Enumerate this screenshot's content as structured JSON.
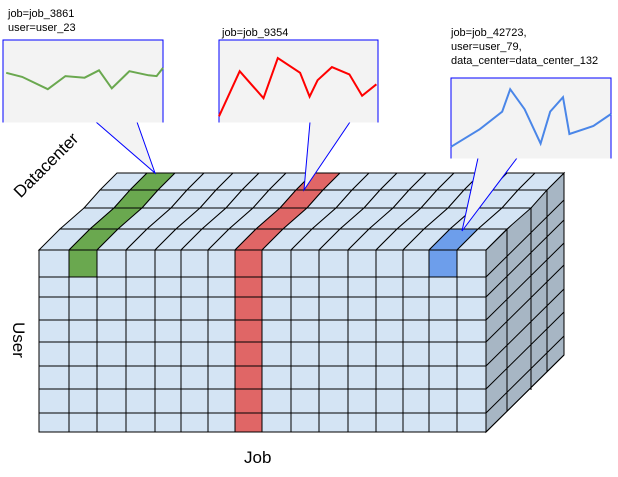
{
  "axes": {
    "datacenter": "Datacenter",
    "user": "User",
    "job": "Job"
  },
  "colors": {
    "cell": "#d4e4f4",
    "side": "#a7b6c4",
    "green": "#6aa84f",
    "red": "#e06666",
    "blue": "#6d9eeb",
    "callout_border": "#0000ff",
    "callout_fill": "#f3f3f3"
  },
  "callouts": [
    {
      "lines": [
        "job=job_3861",
        "user=user_23"
      ],
      "line_color": "#6aa84f"
    },
    {
      "lines": [
        "job=job_9354"
      ],
      "line_color": "#ff0000"
    },
    {
      "lines": [
        "job=job_42723,",
        "user=user_79,",
        "data_center=data_center_132"
      ],
      "line_color": "#4a86e8"
    }
  ],
  "chart_data": [
    {
      "type": "line",
      "series": [
        {
          "x": [
            2,
            12,
            28,
            39,
            51,
            60,
            68,
            79,
            91,
            96,
            100
          ],
          "values": [
            60,
            55,
            40,
            56,
            54,
            63,
            41,
            62,
            57,
            56,
            66
          ]
        }
      ]
    },
    {
      "type": "line",
      "series": [
        {
          "x": [
            0,
            13,
            28,
            37,
            51,
            57,
            62,
            71,
            82,
            90,
            99
          ],
          "values": [
            7,
            62,
            29,
            78,
            60,
            31,
            51,
            67,
            58,
            32,
            46
          ]
        }
      ]
    },
    {
      "type": "line",
      "series": [
        {
          "x": [
            0,
            18,
            32,
            37,
            46,
            56,
            62,
            70,
            74,
            89,
            100
          ],
          "values": [
            14,
            36,
            58,
            86,
            61,
            18,
            58,
            76,
            30,
            40,
            55
          ]
        }
      ]
    }
  ]
}
